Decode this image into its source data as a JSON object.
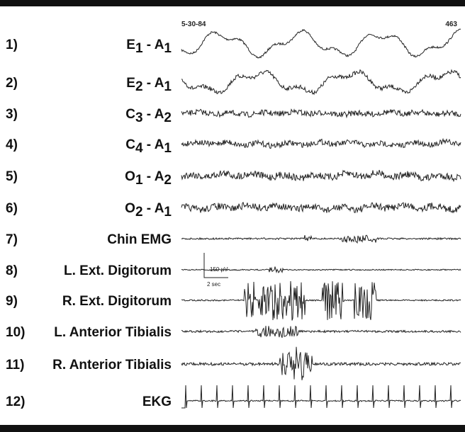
{
  "header": {
    "date": "5-30-84",
    "page": "463"
  },
  "channels": [
    {
      "number": "1)",
      "label": [
        "E",
        "1",
        " - A",
        "1"
      ]
    },
    {
      "number": "2)",
      "label": [
        "E",
        "2",
        " - A",
        "1"
      ]
    },
    {
      "number": "3)",
      "label": [
        "C",
        "3",
        " - A",
        "2"
      ]
    },
    {
      "number": "4)",
      "label": [
        "C",
        "4",
        " - A",
        "1"
      ]
    },
    {
      "number": "5)",
      "label": [
        "O",
        "1",
        " - A",
        "2"
      ]
    },
    {
      "number": "6)",
      "label": [
        "O",
        "2",
        " - A",
        "1"
      ]
    },
    {
      "number": "7)",
      "label": [
        "Chin EMG"
      ]
    },
    {
      "number": "8)",
      "label": [
        "L. Ext. Digitorum"
      ]
    },
    {
      "number": "9)",
      "label": [
        "R. Ext. Digitorum"
      ]
    },
    {
      "number": "10)",
      "label": [
        "L. Anterior Tibialis"
      ]
    },
    {
      "number": "11)",
      "label": [
        "R. Anterior Tibialis"
      ]
    },
    {
      "number": "12)",
      "label": [
        "EKG"
      ]
    }
  ],
  "calibration": {
    "amplitude": "150 µV",
    "time": "2 sec"
  }
}
